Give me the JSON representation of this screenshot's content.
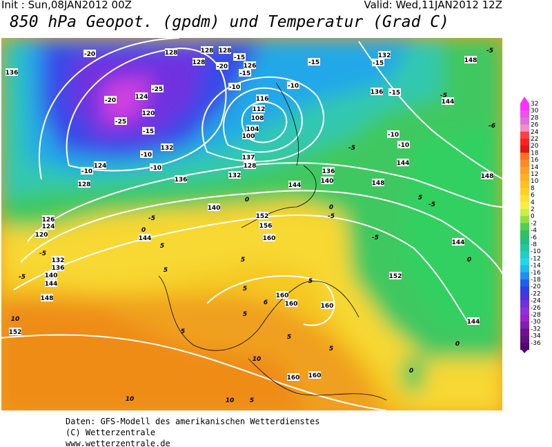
{
  "header": {
    "init": "Init : Sun,08JAN2012 00Z",
    "valid": "Valid: Wed,11JAN2012 12Z",
    "title": "850 hPa Geopot. (gpdm) und Temperatur (Grad C)"
  },
  "map": {
    "labels": [
      "136",
      "-20",
      "128",
      "128",
      "128",
      "-15",
      "128",
      "-20",
      "126",
      "-15",
      "116",
      "-10",
      "-15",
      "-10",
      "132",
      "-15",
      "-5",
      "148",
      "-20",
      "124",
      "-25",
      "-25",
      "120",
      "-15",
      "112",
      "108",
      "104",
      "100",
      "136",
      "-15",
      "-5",
      "144",
      "-6",
      "-10",
      "-10",
      "-5",
      "132",
      "-10",
      "-10",
      "124",
      "-10",
      "128",
      "137",
      "128",
      "132",
      "136",
      "136",
      "140",
      "144",
      "148",
      "144",
      "148",
      "0",
      "140",
      "-5",
      "0",
      "144",
      "126",
      "124",
      "120",
      "-5",
      "132",
      "136",
      "140",
      "144",
      "148",
      "-5",
      "152",
      "156",
      "160",
      "-5",
      "5",
      "-5",
      "144",
      "0",
      "152",
      "160",
      "160",
      "160",
      "144",
      "0",
      "0",
      "10",
      "152",
      "5",
      "5",
      "5",
      "5",
      "6",
      "5",
      "5",
      "5",
      "10",
      "10",
      "10",
      "5",
      "160",
      "160",
      "5",
      "5",
      "-5",
      "0"
    ]
  },
  "legend": {
    "ticks": [
      32,
      30,
      28,
      26,
      24,
      22,
      20,
      18,
      16,
      14,
      12,
      10,
      8,
      6,
      4,
      2,
      0,
      -2,
      -4,
      -6,
      -8,
      -10,
      -12,
      -14,
      -16,
      -18,
      -20,
      -22,
      -24,
      -26,
      -28,
      -30,
      -32,
      -34,
      -36
    ],
    "colors": [
      "#ff30ff",
      "#f050f0",
      "#e070e0",
      "#f090c0",
      "#ff4040",
      "#ff2020",
      "#e01818",
      "#ff7020",
      "#ff8a20",
      "#ffa020",
      "#ffb020",
      "#ffc020",
      "#ffd020",
      "#ffe030",
      "#f8f040",
      "#c8f040",
      "#90e040",
      "#50d050",
      "#30c060",
      "#20c080",
      "#20c8a0",
      "#20d0c8",
      "#20d8e8",
      "#20b8f0",
      "#2090f0",
      "#2060f0",
      "#3040e8",
      "#5030e0",
      "#7030e0",
      "#9030e0",
      "#a020d0",
      "#8020b0",
      "#701090",
      "#601080",
      "#500870"
    ]
  },
  "footer": {
    "lines": [
      "Daten: GFS-Modell des amerikanischen Wetterdienstes",
      "(C) Wetterzentrale",
      "www.wetterzentrale.de"
    ]
  }
}
